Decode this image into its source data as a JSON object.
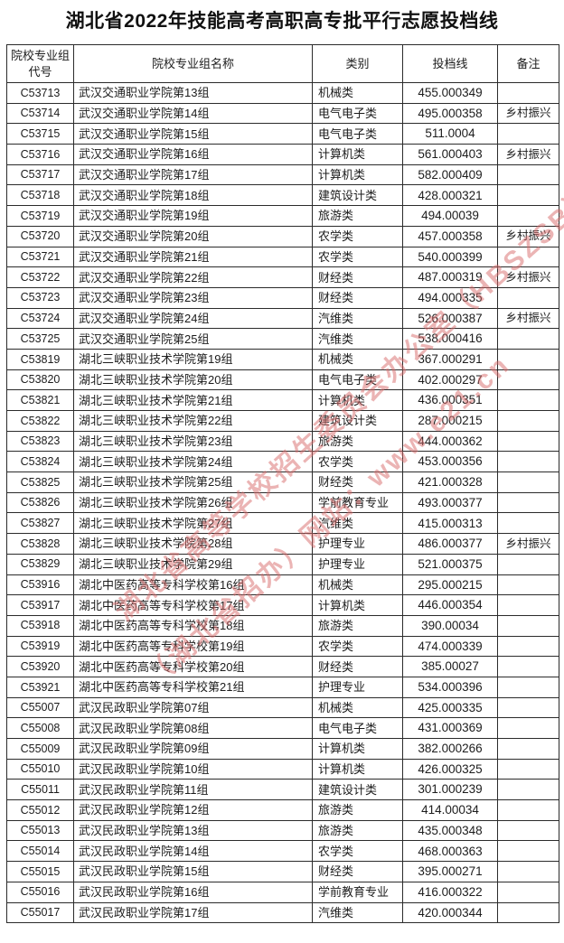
{
  "page": {
    "title": "湖北省2022年技能高考高职高专批平行志愿投档线"
  },
  "watermark": {
    "color": "#d96c6c",
    "line1": "湖北省高等学校招生委员会办公室（HBSZSB）",
    "line2": "（湖北省招办）网站：www.e21.cn"
  },
  "table": {
    "headers": [
      "院校专业组\n代号",
      "院校专业组名称",
      "类别",
      "投档线",
      "备注"
    ],
    "rows": [
      [
        "C53713",
        "武汉交通职业学院第13组",
        "机械类",
        "455.000349",
        ""
      ],
      [
        "C53714",
        "武汉交通职业学院第14组",
        "电气电子类",
        "495.000358",
        "乡村振兴"
      ],
      [
        "C53715",
        "武汉交通职业学院第15组",
        "电气电子类",
        "511.0004",
        ""
      ],
      [
        "C53716",
        "武汉交通职业学院第16组",
        "计算机类",
        "561.000403",
        "乡村振兴"
      ],
      [
        "C53717",
        "武汉交通职业学院第17组",
        "计算机类",
        "582.000409",
        ""
      ],
      [
        "C53718",
        "武汉交通职业学院第18组",
        "建筑设计类",
        "428.000321",
        ""
      ],
      [
        "C53719",
        "武汉交通职业学院第19组",
        "旅游类",
        "494.00039",
        ""
      ],
      [
        "C53720",
        "武汉交通职业学院第20组",
        "农学类",
        "457.000358",
        "乡村振兴"
      ],
      [
        "C53721",
        "武汉交通职业学院第21组",
        "农学类",
        "540.000399",
        ""
      ],
      [
        "C53722",
        "武汉交通职业学院第22组",
        "财经类",
        "487.000319",
        "乡村振兴"
      ],
      [
        "C53723",
        "武汉交通职业学院第23组",
        "财经类",
        "494.000335",
        ""
      ],
      [
        "C53724",
        "武汉交通职业学院第24组",
        "汽维类",
        "526.000387",
        "乡村振兴"
      ],
      [
        "C53725",
        "武汉交通职业学院第25组",
        "汽维类",
        "538.000416",
        ""
      ],
      [
        "C53819",
        "湖北三峡职业技术学院第19组",
        "机械类",
        "367.000291",
        ""
      ],
      [
        "C53820",
        "湖北三峡职业技术学院第20组",
        "电气电子类",
        "402.000297",
        ""
      ],
      [
        "C53821",
        "湖北三峡职业技术学院第21组",
        "计算机类",
        "436.000351",
        ""
      ],
      [
        "C53822",
        "湖北三峡职业技术学院第22组",
        "建筑设计类",
        "287.000215",
        ""
      ],
      [
        "C53823",
        "湖北三峡职业技术学院第23组",
        "旅游类",
        "444.000362",
        ""
      ],
      [
        "C53824",
        "湖北三峡职业技术学院第24组",
        "农学类",
        "453.000356",
        ""
      ],
      [
        "C53825",
        "湖北三峡职业技术学院第25组",
        "财经类",
        "421.000328",
        ""
      ],
      [
        "C53826",
        "湖北三峡职业技术学院第26组",
        "学前教育专业",
        "493.000377",
        ""
      ],
      [
        "C53827",
        "湖北三峡职业技术学院第27组",
        "汽维类",
        "415.000313",
        ""
      ],
      [
        "C53828",
        "湖北三峡职业技术学院第28组",
        "护理专业",
        "486.000377",
        "乡村振兴"
      ],
      [
        "C53829",
        "湖北三峡职业技术学院第29组",
        "护理专业",
        "521.000375",
        ""
      ],
      [
        "C53916",
        "湖北中医药高等专科学校第16组",
        "机械类",
        "295.000215",
        ""
      ],
      [
        "C53917",
        "湖北中医药高等专科学校第17组",
        "计算机类",
        "446.000354",
        ""
      ],
      [
        "C53918",
        "湖北中医药高等专科学校第18组",
        "旅游类",
        "390.00034",
        ""
      ],
      [
        "C53919",
        "湖北中医药高等专科学校第19组",
        "农学类",
        "474.000339",
        ""
      ],
      [
        "C53920",
        "湖北中医药高等专科学校第20组",
        "财经类",
        "385.00027",
        ""
      ],
      [
        "C53921",
        "湖北中医药高等专科学校第21组",
        "护理专业",
        "534.000396",
        ""
      ],
      [
        "C55007",
        "武汉民政职业学院第07组",
        "机械类",
        "425.000335",
        ""
      ],
      [
        "C55008",
        "武汉民政职业学院第08组",
        "电气电子类",
        "431.000369",
        ""
      ],
      [
        "C55009",
        "武汉民政职业学院第09组",
        "计算机类",
        "382.000266",
        ""
      ],
      [
        "C55010",
        "武汉民政职业学院第10组",
        "计算机类",
        "426.000325",
        ""
      ],
      [
        "C55011",
        "武汉民政职业学院第11组",
        "建筑设计类",
        "301.000239",
        ""
      ],
      [
        "C55012",
        "武汉民政职业学院第12组",
        "旅游类",
        "414.00034",
        ""
      ],
      [
        "C55013",
        "武汉民政职业学院第13组",
        "旅游类",
        "435.000348",
        ""
      ],
      [
        "C55014",
        "武汉民政职业学院第14组",
        "农学类",
        "468.000363",
        ""
      ],
      [
        "C55015",
        "武汉民政职业学院第15组",
        "财经类",
        "395.000271",
        ""
      ],
      [
        "C55016",
        "武汉民政职业学院第16组",
        "学前教育专业",
        "416.000322",
        ""
      ],
      [
        "C55017",
        "武汉民政职业学院第17组",
        "汽维类",
        "420.000344",
        ""
      ]
    ]
  }
}
